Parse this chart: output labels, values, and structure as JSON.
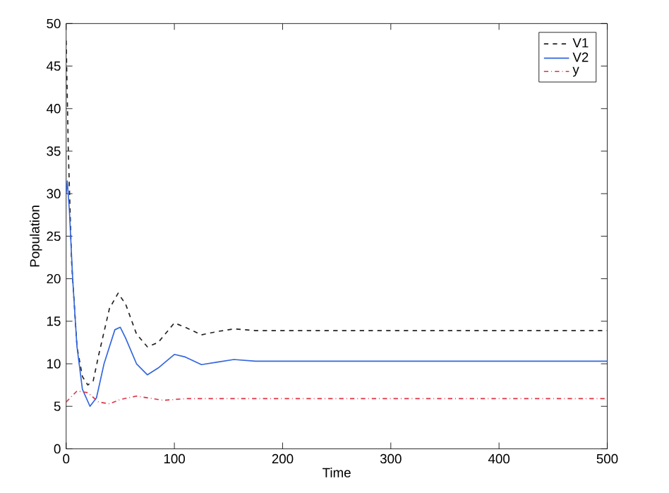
{
  "chart_data": {
    "type": "line",
    "xlabel": "Time",
    "ylabel": "Population",
    "xlim": [
      0,
      500
    ],
    "ylim": [
      0,
      50
    ],
    "xticks": [
      0,
      100,
      200,
      300,
      400,
      500
    ],
    "yticks": [
      0,
      5,
      10,
      15,
      20,
      25,
      30,
      35,
      40,
      45,
      50
    ],
    "legend": "top right",
    "grid": false,
    "marker": "none",
    "series": [
      {
        "name": "V1",
        "color": "#222222",
        "line_style": "dashed",
        "x": [
          0,
          2,
          5,
          10,
          15,
          20,
          25,
          30,
          40,
          48,
          55,
          65,
          75,
          85,
          100,
          110,
          125,
          140,
          155,
          175,
          200,
          250,
          500
        ],
        "values": [
          48,
          35,
          22,
          12,
          8.5,
          7.5,
          8,
          11,
          16.5,
          18.3,
          17,
          13.5,
          12,
          12.5,
          14.8,
          14.3,
          13.4,
          13.8,
          14.1,
          13.9,
          13.9,
          13.9,
          13.9
        ]
      },
      {
        "name": "V2",
        "color": "#3366dd",
        "line_style": "solid",
        "x": [
          0,
          1,
          3,
          6,
          10,
          15,
          22,
          28,
          35,
          45,
          50,
          55,
          65,
          75,
          85,
          100,
          110,
          125,
          140,
          155,
          175,
          200,
          500
        ],
        "values": [
          30,
          31.5,
          28,
          20,
          12,
          7,
          5,
          6,
          10,
          14,
          14.3,
          13,
          10,
          8.7,
          9.5,
          11.1,
          10.8,
          9.9,
          10.2,
          10.5,
          10.3,
          10.3,
          10.3
        ]
      },
      {
        "name": "y",
        "color": "#dd3344",
        "line_style": "dashdot",
        "x": [
          0,
          10,
          20,
          30,
          40,
          50,
          65,
          80,
          90,
          110,
          150,
          500
        ],
        "values": [
          5.5,
          6.8,
          6.6,
          5.5,
          5.3,
          5.8,
          6.2,
          5.9,
          5.7,
          5.9,
          5.9,
          5.9
        ]
      }
    ]
  }
}
